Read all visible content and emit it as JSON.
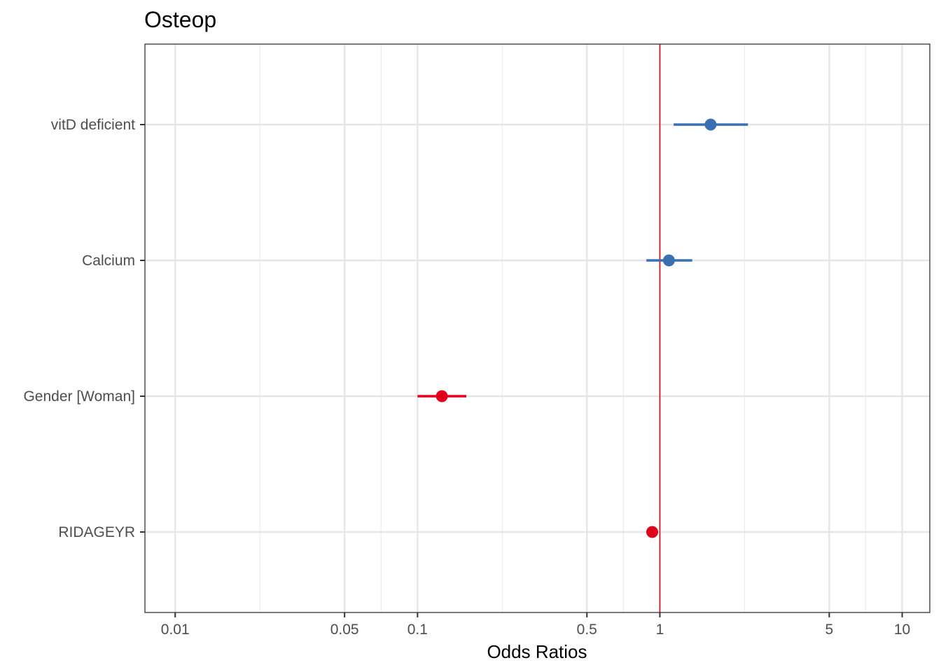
{
  "chart_data": {
    "type": "forest",
    "title": "Osteop",
    "xlabel": "Odds Ratios",
    "ylabel": "",
    "x_scale": "log",
    "xlim": [
      0.0075,
      13
    ],
    "x_ticks": [
      0.01,
      0.05,
      0.1,
      0.5,
      1,
      5,
      10
    ],
    "x_tick_labels": [
      "0.01",
      "0.05",
      "0.1",
      "0.5",
      "1",
      "5",
      "10"
    ],
    "reference_line": 1,
    "grid": true,
    "colors": {
      "positive": "#3a6fb0",
      "negative": "#e0001c",
      "reference": "#e0001c"
    },
    "terms": [
      {
        "label": "vitD deficient",
        "estimate": 1.62,
        "ci_low": 1.14,
        "ci_high": 2.31,
        "direction": "positive"
      },
      {
        "label": "Calcium",
        "estimate": 1.09,
        "ci_low": 0.88,
        "ci_high": 1.36,
        "direction": "positive"
      },
      {
        "label": "Gender [Woman]",
        "estimate": 0.126,
        "ci_low": 0.1,
        "ci_high": 0.159,
        "direction": "negative"
      },
      {
        "label": "RIDAGEYR",
        "estimate": 0.93,
        "ci_low": 0.92,
        "ci_high": 0.94,
        "direction": "negative"
      }
    ]
  }
}
